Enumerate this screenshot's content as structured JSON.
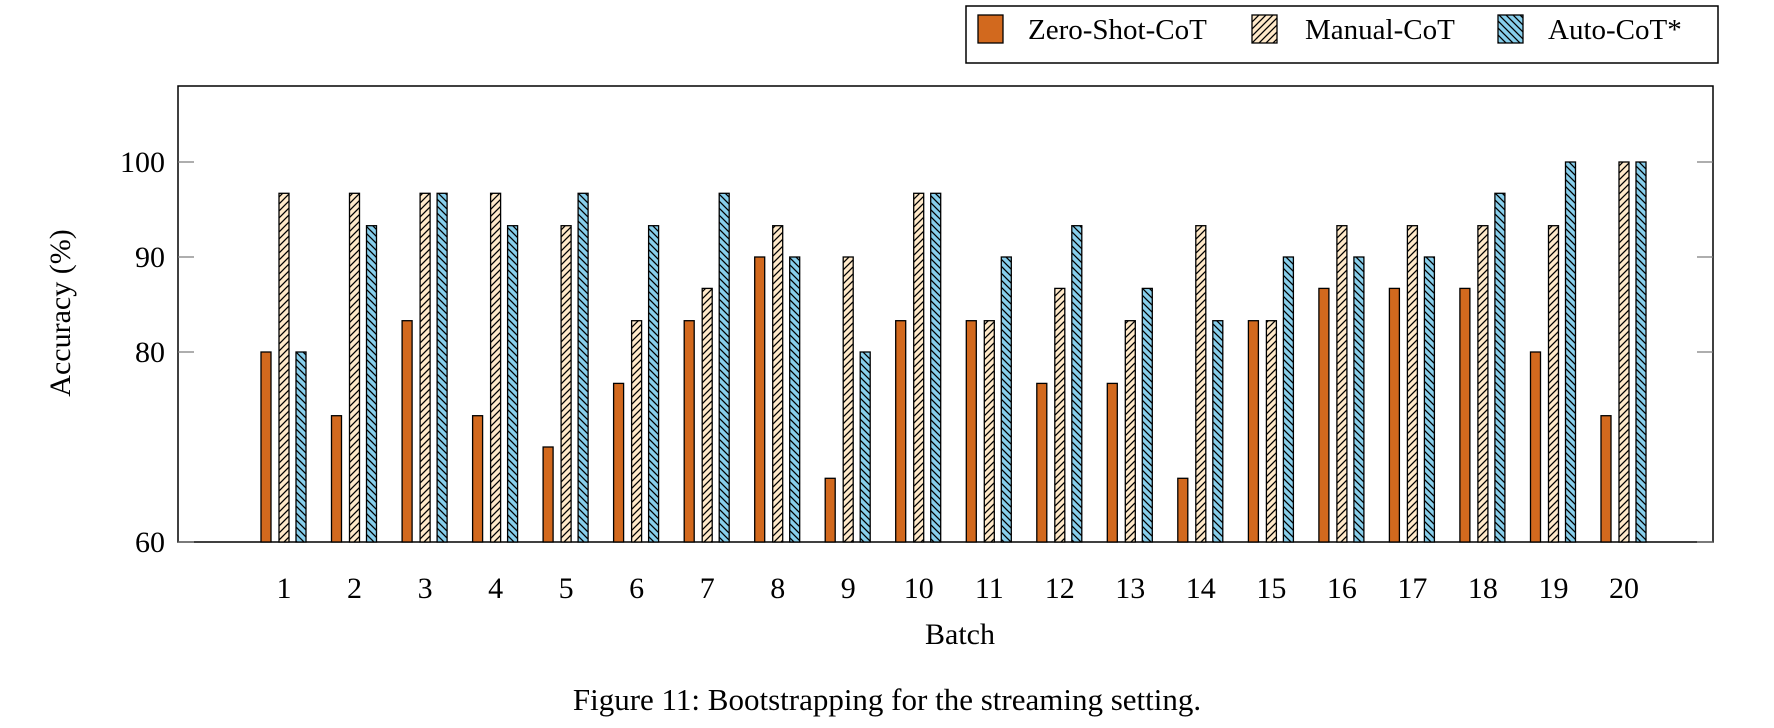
{
  "chart_data": {
    "type": "bar",
    "title": "",
    "caption": "Figure 11: Bootstrapping for the streaming setting.",
    "xlabel": "Batch",
    "ylabel": "Accuracy (%)",
    "ylim": [
      60,
      108
    ],
    "yticks": [
      60,
      80,
      90,
      100
    ],
    "grid": false,
    "legend_position": "top-right",
    "categories": [
      "1",
      "2",
      "3",
      "4",
      "5",
      "6",
      "7",
      "8",
      "9",
      "10",
      "11",
      "12",
      "13",
      "14",
      "15",
      "16",
      "17",
      "18",
      "19",
      "20"
    ],
    "series": [
      {
        "name": "Zero-Shot-CoT",
        "fill": "#D2691E",
        "pattern": "solid",
        "values": [
          80.0,
          73.3,
          83.3,
          73.3,
          70.0,
          76.7,
          83.3,
          90.0,
          66.7,
          83.3,
          83.3,
          76.7,
          76.7,
          66.7,
          83.3,
          86.7,
          86.7,
          86.7,
          80.0,
          73.3
        ]
      },
      {
        "name": "Manual-CoT",
        "fill": "#FFE9C9",
        "pattern": "north-east-lines",
        "values": [
          96.7,
          96.7,
          96.7,
          96.7,
          93.3,
          83.3,
          86.7,
          93.3,
          90.0,
          96.7,
          83.3,
          86.7,
          83.3,
          93.3,
          83.3,
          93.3,
          93.3,
          93.3,
          93.3,
          100.0
        ]
      },
      {
        "name": "Auto-CoT*",
        "fill": "#87CEEB",
        "pattern": "north-west-lines",
        "values": [
          80.0,
          93.3,
          96.7,
          93.3,
          96.7,
          93.3,
          96.7,
          90.0,
          80.0,
          96.7,
          90.0,
          93.3,
          86.7,
          83.3,
          90.0,
          90.0,
          90.0,
          96.7,
          100.0,
          100.0
        ]
      }
    ]
  }
}
